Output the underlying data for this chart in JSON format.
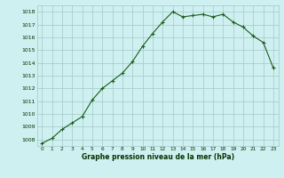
{
  "x": [
    0,
    1,
    2,
    3,
    4,
    5,
    6,
    7,
    8,
    9,
    10,
    11,
    12,
    13,
    14,
    15,
    16,
    17,
    18,
    19,
    20,
    21,
    22,
    23
  ],
  "y": [
    1007.7,
    1008.1,
    1008.8,
    1009.3,
    1009.8,
    1011.1,
    1012.0,
    1012.6,
    1013.2,
    1014.1,
    1015.3,
    1016.3,
    1017.2,
    1018.0,
    1017.6,
    1017.7,
    1017.8,
    1017.6,
    1017.8,
    1017.2,
    1016.8,
    1016.1,
    1015.6,
    1013.6
  ],
  "title": "Graphe pression niveau de la mer (hPa)",
  "ylim": [
    1007.5,
    1018.5
  ],
  "yticks": [
    1008,
    1009,
    1010,
    1011,
    1012,
    1013,
    1014,
    1015,
    1016,
    1017,
    1018
  ],
  "xticks": [
    0,
    1,
    2,
    3,
    4,
    5,
    6,
    7,
    8,
    9,
    10,
    11,
    12,
    13,
    14,
    15,
    16,
    17,
    18,
    19,
    20,
    21,
    22,
    23
  ],
  "line_color": "#1a5c1a",
  "marker": "+",
  "bg_color": "#cff0f0",
  "grid_color": "#a0c8c8",
  "title_color": "#003300"
}
